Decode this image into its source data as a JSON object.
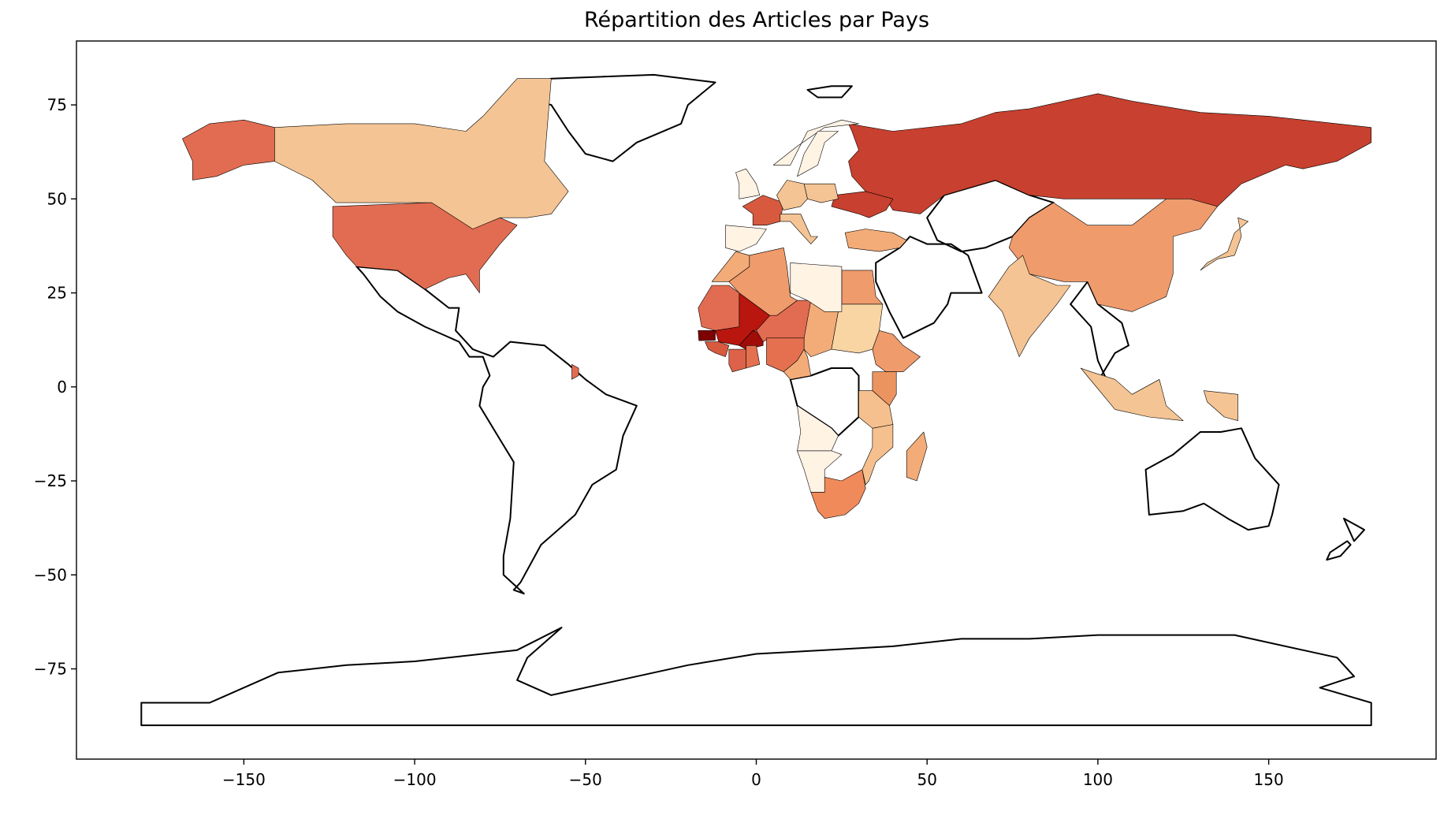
{
  "chart_data": {
    "type": "choropleth",
    "title": "Répartition des Articles par Pays",
    "xlabel": "",
    "ylabel": "",
    "xlim": [
      -199,
      199
    ],
    "ylim": [
      -99,
      92
    ],
    "x_ticks": [
      -150,
      -100,
      -50,
      0,
      50,
      100,
      150
    ],
    "y_ticks": [
      75,
      50,
      25,
      0,
      -25,
      -50,
      -75
    ],
    "x_tick_labels": [
      "−150",
      "−100",
      "−50",
      "0",
      "50",
      "100",
      "150"
    ],
    "y_tick_labels": [
      "75",
      "50",
      "25",
      "0",
      "−25",
      "−50",
      "−75"
    ],
    "colormap": "OrRd",
    "colormap_colors": [
      "#fff7ec",
      "#fdd49e",
      "#fdbb84",
      "#fc8d59",
      "#e34a33",
      "#b30000",
      "#7f0000"
    ],
    "no_data_color": "#ffffff",
    "grid": false,
    "legend": "none",
    "shaded_countries": [
      {
        "country": "Sénégal",
        "value": 1.0,
        "color": "#7f0000"
      },
      {
        "country": "Mali",
        "value": 0.82,
        "color": "#b8160f"
      },
      {
        "country": "Burkina Faso",
        "value": 0.86,
        "color": "#a10c09"
      },
      {
        "country": "Russie",
        "value": 0.78,
        "color": "#c8402f"
      },
      {
        "country": "Ukraine",
        "value": 0.78,
        "color": "#c8402f"
      },
      {
        "country": "France",
        "value": 0.74,
        "color": "#d75a3f"
      },
      {
        "country": "États-Unis",
        "value": 0.68,
        "color": "#e26c51"
      },
      {
        "country": "Mauritanie",
        "value": 0.68,
        "color": "#e26c51"
      },
      {
        "country": "Niger",
        "value": 0.68,
        "color": "#e26c51"
      },
      {
        "country": "Guinée",
        "value": 0.74,
        "color": "#d75a3f"
      },
      {
        "country": "Côte d'Ivoire",
        "value": 0.7,
        "color": "#de6249"
      },
      {
        "country": "Nigeria",
        "value": 0.66,
        "color": "#e5704f"
      },
      {
        "country": "Ghana",
        "value": 0.66,
        "color": "#e5704f"
      },
      {
        "country": "Chine",
        "value": 0.56,
        "color": "#ef9b6c"
      },
      {
        "country": "Algérie",
        "value": 0.56,
        "color": "#ef9b6c"
      },
      {
        "country": "Égypte",
        "value": 0.56,
        "color": "#ef9b6c"
      },
      {
        "country": "Afrique du Sud",
        "value": 0.6,
        "color": "#f08a5a"
      },
      {
        "country": "Éthiopie",
        "value": 0.56,
        "color": "#ef9b6c"
      },
      {
        "country": "Kenya",
        "value": 0.58,
        "color": "#ec9460"
      },
      {
        "country": "Tanzanie",
        "value": 0.44,
        "color": "#f6c08e"
      },
      {
        "country": "Mozambique",
        "value": 0.44,
        "color": "#f6c08e"
      },
      {
        "country": "Madagascar",
        "value": 0.5,
        "color": "#f3ac78"
      },
      {
        "country": "Maroc",
        "value": 0.5,
        "color": "#f3ac78"
      },
      {
        "country": "Cameroun",
        "value": 0.5,
        "color": "#f3ac78"
      },
      {
        "country": "Tchad",
        "value": 0.5,
        "color": "#f3ac78"
      },
      {
        "country": "Soudan",
        "value": 0.38,
        "color": "#f9d5a4"
      },
      {
        "country": "Canada",
        "value": 0.4,
        "color": "#f4c494"
      },
      {
        "country": "Inde",
        "value": 0.4,
        "color": "#f4c494"
      },
      {
        "country": "Indonésie",
        "value": 0.4,
        "color": "#f4c494"
      },
      {
        "country": "Papouasie-Nouvelle-Guinée",
        "value": 0.4,
        "color": "#f4c494"
      },
      {
        "country": "Kazakhstan",
        "value": 0.0,
        "color": "#ffffff"
      },
      {
        "country": "Allemagne",
        "value": 0.4,
        "color": "#f4c494"
      },
      {
        "country": "Italie",
        "value": 0.4,
        "color": "#f4c494"
      },
      {
        "country": "Pologne",
        "value": 0.4,
        "color": "#f4c494"
      },
      {
        "country": "Turquie",
        "value": 0.5,
        "color": "#f3ac78"
      },
      {
        "country": "Japon",
        "value": 0.4,
        "color": "#f4c494"
      },
      {
        "country": "Guyane",
        "value": 0.68,
        "color": "#e26c51"
      },
      {
        "country": "Espagne",
        "value": 0.12,
        "color": "#fff3e4"
      },
      {
        "country": "Libye",
        "value": 0.12,
        "color": "#fff3e4"
      },
      {
        "country": "Angola",
        "value": 0.12,
        "color": "#fff3e4"
      },
      {
        "country": "Namibie",
        "value": 0.12,
        "color": "#fff3e4"
      },
      {
        "country": "Royaume-Uni",
        "value": 0.12,
        "color": "#fff3e4"
      },
      {
        "country": "Norvège",
        "value": 0.12,
        "color": "#fff3e4"
      },
      {
        "country": "Suède",
        "value": 0.12,
        "color": "#fff3e4"
      }
    ],
    "outlined_regions": [
      "Groenland",
      "Amérique latine",
      "Australie",
      "Nouvelle-Zélande",
      "Antarctique",
      "Moyen-Orient",
      "Asie centrale",
      "Afrique centrale"
    ]
  }
}
